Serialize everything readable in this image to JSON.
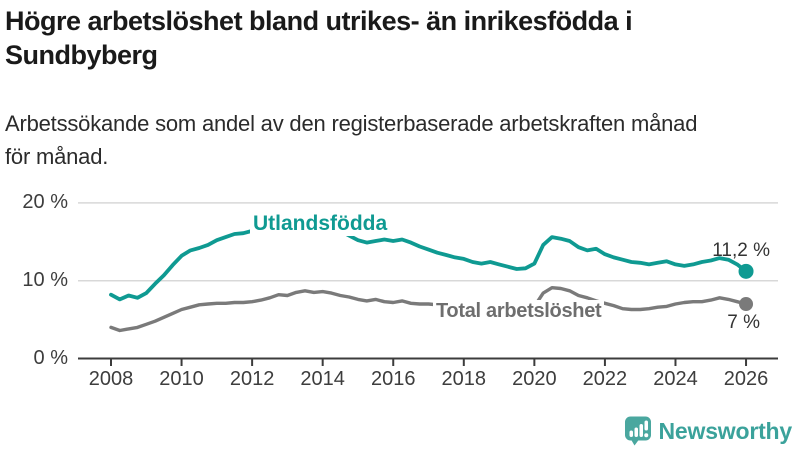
{
  "header": {
    "title_line1": "Högre arbetslöshet bland utrikes- än inrikesfödda i",
    "title_line2": "Sundbyberg",
    "subtitle_line1": "Arbetssökande som andel av den registerbaserade arbetskraften månad",
    "subtitle_line2": "för månad."
  },
  "footer": {
    "brand": "Newsworthy",
    "logo_icon": "bar-chart-speech-bubble-icon",
    "brand_color": "#4aa79f"
  },
  "chart_data": {
    "type": "line",
    "title": "Högre arbetslöshet bland utrikes- än inrikesfödda i Sundbyberg",
    "subtitle": "Arbetssökande som andel av den registerbaserade arbetskraften månad för månad.",
    "xlabel": "",
    "ylabel": "",
    "xlim": [
      2007.1,
      2026.9
    ],
    "ylim": [
      0,
      22
    ],
    "grid": "horizontal",
    "x_ticks": [
      2008,
      2010,
      2012,
      2014,
      2016,
      2018,
      2020,
      2022,
      2024,
      2026
    ],
    "y_ticks": [
      {
        "value": 0,
        "label": "0 %"
      },
      {
        "value": 10,
        "label": "10 %"
      },
      {
        "value": 20,
        "label": "20 %"
      }
    ],
    "colors": {
      "axis": "#3c3c3c",
      "grid": "#d8d8d8",
      "tick_label": "#3d3d3d",
      "value_label": "#333333"
    },
    "series": [
      {
        "name": "Utlandsfödda",
        "color": "#0f9a92",
        "stroke_width": 3.8,
        "end_label": "11,2 %",
        "end_value": 11.2,
        "points": [
          [
            2008.0,
            8.2
          ],
          [
            2008.25,
            7.6
          ],
          [
            2008.5,
            8.1
          ],
          [
            2008.75,
            7.8
          ],
          [
            2009.0,
            8.4
          ],
          [
            2009.25,
            9.6
          ],
          [
            2009.5,
            10.7
          ],
          [
            2009.75,
            12.0
          ],
          [
            2010.0,
            13.2
          ],
          [
            2010.25,
            13.9
          ],
          [
            2010.5,
            14.2
          ],
          [
            2010.75,
            14.6
          ],
          [
            2011.0,
            15.2
          ],
          [
            2011.25,
            15.6
          ],
          [
            2011.5,
            16.0
          ],
          [
            2011.75,
            16.1
          ],
          [
            2012.0,
            16.4
          ],
          [
            2012.25,
            16.6
          ],
          [
            2012.5,
            16.5
          ],
          [
            2012.75,
            16.7
          ],
          [
            2013.0,
            16.8
          ],
          [
            2013.25,
            17.1
          ],
          [
            2013.5,
            16.9
          ],
          [
            2013.75,
            16.8
          ],
          [
            2014.0,
            16.8
          ],
          [
            2014.25,
            16.6
          ],
          [
            2014.5,
            16.4
          ],
          [
            2014.75,
            15.8
          ],
          [
            2015.0,
            15.2
          ],
          [
            2015.25,
            14.9
          ],
          [
            2015.5,
            15.1
          ],
          [
            2015.75,
            15.3
          ],
          [
            2016.0,
            15.1
          ],
          [
            2016.25,
            15.3
          ],
          [
            2016.5,
            14.9
          ],
          [
            2016.75,
            14.4
          ],
          [
            2017.0,
            14.0
          ],
          [
            2017.25,
            13.6
          ],
          [
            2017.5,
            13.3
          ],
          [
            2017.75,
            13.0
          ],
          [
            2018.0,
            12.8
          ],
          [
            2018.25,
            12.4
          ],
          [
            2018.5,
            12.2
          ],
          [
            2018.75,
            12.4
          ],
          [
            2019.0,
            12.1
          ],
          [
            2019.25,
            11.8
          ],
          [
            2019.5,
            11.5
          ],
          [
            2019.75,
            11.6
          ],
          [
            2020.0,
            12.2
          ],
          [
            2020.25,
            14.6
          ],
          [
            2020.5,
            15.6
          ],
          [
            2020.75,
            15.4
          ],
          [
            2021.0,
            15.1
          ],
          [
            2021.25,
            14.3
          ],
          [
            2021.5,
            13.9
          ],
          [
            2021.75,
            14.1
          ],
          [
            2022.0,
            13.4
          ],
          [
            2022.25,
            13.0
          ],
          [
            2022.5,
            12.7
          ],
          [
            2022.75,
            12.4
          ],
          [
            2023.0,
            12.3
          ],
          [
            2023.25,
            12.1
          ],
          [
            2023.5,
            12.3
          ],
          [
            2023.75,
            12.5
          ],
          [
            2024.0,
            12.1
          ],
          [
            2024.25,
            11.9
          ],
          [
            2024.5,
            12.1
          ],
          [
            2024.75,
            12.4
          ],
          [
            2025.0,
            12.6
          ],
          [
            2025.25,
            12.9
          ],
          [
            2025.5,
            12.7
          ],
          [
            2025.75,
            12.1
          ],
          [
            2026.0,
            11.2
          ]
        ]
      },
      {
        "name": "Total arbetslöshet",
        "color": "#7a7a7a",
        "stroke_width": 3.4,
        "end_label": "7 %",
        "end_value": 7.0,
        "points": [
          [
            2008.0,
            4.0
          ],
          [
            2008.25,
            3.6
          ],
          [
            2008.5,
            3.8
          ],
          [
            2008.75,
            4.0
          ],
          [
            2009.0,
            4.4
          ],
          [
            2009.25,
            4.8
          ],
          [
            2009.5,
            5.3
          ],
          [
            2009.75,
            5.8
          ],
          [
            2010.0,
            6.3
          ],
          [
            2010.25,
            6.6
          ],
          [
            2010.5,
            6.9
          ],
          [
            2010.75,
            7.0
          ],
          [
            2011.0,
            7.1
          ],
          [
            2011.25,
            7.1
          ],
          [
            2011.5,
            7.2
          ],
          [
            2011.75,
            7.2
          ],
          [
            2012.0,
            7.3
          ],
          [
            2012.25,
            7.5
          ],
          [
            2012.5,
            7.8
          ],
          [
            2012.75,
            8.2
          ],
          [
            2013.0,
            8.1
          ],
          [
            2013.25,
            8.5
          ],
          [
            2013.5,
            8.7
          ],
          [
            2013.75,
            8.5
          ],
          [
            2014.0,
            8.6
          ],
          [
            2014.25,
            8.4
          ],
          [
            2014.5,
            8.1
          ],
          [
            2014.75,
            7.9
          ],
          [
            2015.0,
            7.6
          ],
          [
            2015.25,
            7.4
          ],
          [
            2015.5,
            7.6
          ],
          [
            2015.75,
            7.3
          ],
          [
            2016.0,
            7.2
          ],
          [
            2016.25,
            7.4
          ],
          [
            2016.5,
            7.1
          ],
          [
            2016.75,
            7.0
          ],
          [
            2017.0,
            7.0
          ],
          [
            2017.25,
            6.9
          ],
          [
            2017.5,
            6.8
          ],
          [
            2017.75,
            6.6
          ],
          [
            2018.0,
            6.6
          ],
          [
            2018.25,
            6.5
          ],
          [
            2018.5,
            6.4
          ],
          [
            2018.75,
            6.3
          ],
          [
            2019.0,
            6.3
          ],
          [
            2019.25,
            6.2
          ],
          [
            2019.5,
            6.2
          ],
          [
            2019.75,
            6.3
          ],
          [
            2020.0,
            6.7
          ],
          [
            2020.25,
            8.4
          ],
          [
            2020.5,
            9.1
          ],
          [
            2020.75,
            9.0
          ],
          [
            2021.0,
            8.7
          ],
          [
            2021.25,
            8.1
          ],
          [
            2021.5,
            7.8
          ],
          [
            2021.75,
            7.4
          ],
          [
            2022.0,
            7.1
          ],
          [
            2022.25,
            6.8
          ],
          [
            2022.5,
            6.4
          ],
          [
            2022.75,
            6.3
          ],
          [
            2023.0,
            6.3
          ],
          [
            2023.25,
            6.4
          ],
          [
            2023.5,
            6.6
          ],
          [
            2023.75,
            6.7
          ],
          [
            2024.0,
            7.0
          ],
          [
            2024.25,
            7.2
          ],
          [
            2024.5,
            7.3
          ],
          [
            2024.75,
            7.3
          ],
          [
            2025.0,
            7.5
          ],
          [
            2025.25,
            7.8
          ],
          [
            2025.5,
            7.6
          ],
          [
            2025.75,
            7.3
          ],
          [
            2026.0,
            7.0
          ]
        ]
      }
    ]
  }
}
